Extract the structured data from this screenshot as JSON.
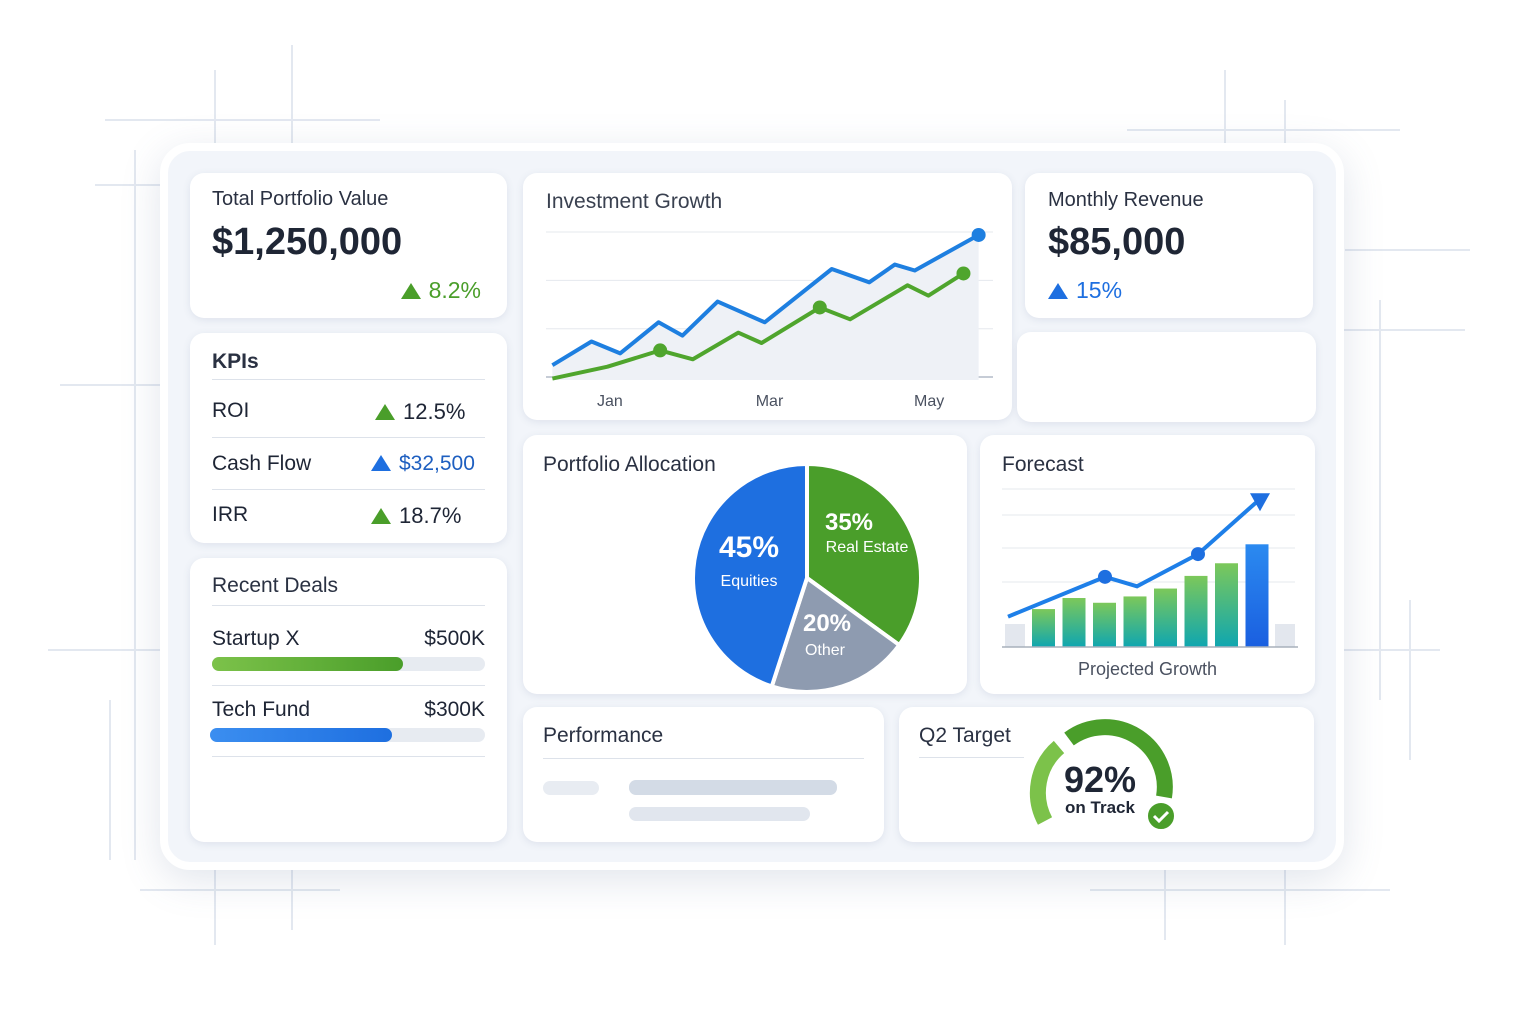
{
  "colors": {
    "green": "#4a9e2a",
    "blue": "#1e6fe0",
    "gray": "#8e9bb0"
  },
  "portfolio": {
    "title": "Total Portfolio Value",
    "value": "$1,250,000",
    "change": "8.2%",
    "trend_icon": "triangle-up-icon"
  },
  "revenue": {
    "title": "Monthly Revenue",
    "value": "$85,000",
    "change": "15%",
    "trend_icon": "triangle-up-icon"
  },
  "kpis": {
    "title": "KPIs",
    "items": [
      {
        "label": "ROI",
        "value": "12.5%",
        "color": "green"
      },
      {
        "label": "Cash Flow",
        "value": "$32,500",
        "color": "blue"
      },
      {
        "label": "IRR",
        "value": "18.7%",
        "color": "green"
      }
    ]
  },
  "deals": {
    "title": "Recent Deals",
    "items": [
      {
        "name": "Startup X",
        "amount": "$500K",
        "progress": 0.7,
        "color": "green"
      },
      {
        "name": "Tech Fund",
        "amount": "$300K",
        "progress": 0.66,
        "color": "blue"
      }
    ]
  },
  "performance": {
    "title": "Performance"
  },
  "target": {
    "title": "Q2 Target",
    "percent": "92%",
    "status": "on Track",
    "value": 92,
    "icon": "check-circle-icon"
  },
  "chart_data": [
    {
      "type": "line",
      "title": "Investment Growth",
      "x_tick_labels": [
        "Jan",
        "Mar",
        "May"
      ],
      "x_ticks": [
        1,
        3,
        5
      ],
      "xlim": [
        0.2,
        5.8
      ],
      "ylim": [
        0,
        100
      ],
      "grid": true,
      "series": [
        {
          "color": "#1e7fe0",
          "x": [
            0.28,
            0.77,
            1.13,
            1.61,
            1.91,
            2.35,
            2.94,
            3.78,
            4.25,
            4.57,
            4.82,
            5.62
          ],
          "y": [
            10,
            26,
            18,
            39,
            30,
            53,
            39,
            75,
            66,
            78,
            74,
            98
          ],
          "markers": [
            11
          ]
        },
        {
          "color": "#4fa52d",
          "x": [
            0.28,
            0.97,
            1.63,
            2.04,
            2.61,
            2.9,
            3.63,
            4.01,
            4.73,
            4.99,
            5.43
          ],
          "y": [
            1,
            9,
            20,
            14,
            32,
            25,
            49,
            41,
            64,
            57,
            72
          ],
          "markers": [
            2,
            6,
            10
          ]
        }
      ]
    },
    {
      "type": "pie",
      "title": "Portfolio Allocation",
      "slices": [
        {
          "label": "Equities",
          "value": 45,
          "text": "45%",
          "color": "#1e6fe0"
        },
        {
          "label": "Real Estate",
          "value": 35,
          "text": "35%",
          "color": "#4a9e2a"
        },
        {
          "label": "Other",
          "value": 20,
          "text": "20%",
          "color": "#8e9bb0"
        }
      ]
    },
    {
      "type": "bar",
      "title": "Forecast",
      "xlabel": "Projected Growth",
      "ylim": [
        0,
        100
      ],
      "grid": true,
      "values": [
        24,
        31,
        28,
        32,
        37,
        45,
        53,
        65
      ],
      "trend": [
        16,
        37,
        32,
        49,
        79
      ]
    }
  ]
}
